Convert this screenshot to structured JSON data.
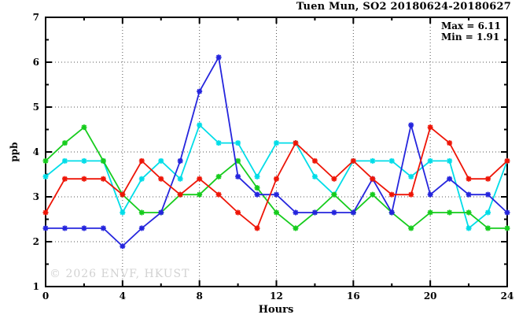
{
  "watermark": "© 2026 ENVF, HKUST",
  "chart_data": {
    "type": "line",
    "title": "Tuen Mun, SO2 20180624-20180627",
    "xlabel": "Hours",
    "ylabel": "ppb",
    "xlim": [
      0,
      24
    ],
    "ylim": [
      1,
      7
    ],
    "grid": "dotted",
    "legend_position": "none",
    "marker_style": "asterisk",
    "x_major_ticks": [
      0,
      4,
      8,
      12,
      16,
      20,
      24
    ],
    "x_minor_ticks": [
      2,
      6,
      10,
      14,
      18,
      22
    ],
    "y_major_ticks": [
      1,
      2,
      3,
      4,
      5,
      6,
      7
    ],
    "y_minor_ticks": [
      1.5,
      2.5,
      3.5,
      4.5,
      5.5,
      6.5
    ],
    "x_gridlines": [
      4,
      8,
      12,
      16,
      20
    ],
    "y_gridlines": [
      2,
      3,
      4,
      5,
      6
    ],
    "stats": {
      "max_label": "Max = 6.11",
      "min_label": "Min = 1.91",
      "max": 6.11,
      "min": 1.91
    },
    "x": [
      0,
      1,
      2,
      3,
      4,
      5,
      6,
      7,
      8,
      9,
      10,
      11,
      12,
      13,
      14,
      15,
      16,
      17,
      18,
      19,
      20,
      21,
      22,
      23,
      24
    ],
    "series": [
      {
        "name": "series-1-cyan",
        "color": "#00dde8",
        "values": [
          3.45,
          3.8,
          3.8,
          3.8,
          2.65,
          3.4,
          3.8,
          3.4,
          4.6,
          4.2,
          4.2,
          3.45,
          4.2,
          4.2,
          3.45,
          3.05,
          3.8,
          3.8,
          3.8,
          3.45,
          3.8,
          3.8,
          2.3,
          2.65,
          3.8
        ]
      },
      {
        "name": "series-2-green",
        "color": "#16cc1d",
        "values": [
          3.8,
          4.2,
          4.55,
          3.8,
          3.05,
          2.65,
          2.65,
          3.05,
          3.05,
          3.45,
          3.8,
          3.2,
          2.65,
          2.3,
          2.65,
          3.05,
          2.65,
          3.05,
          2.65,
          2.3,
          2.65,
          2.65,
          2.65,
          2.3,
          2.3
        ]
      },
      {
        "name": "series-3-blue",
        "color": "#2525dd",
        "values": [
          2.3,
          2.3,
          2.3,
          2.3,
          1.9,
          2.3,
          2.65,
          3.8,
          5.35,
          6.11,
          3.45,
          3.05,
          3.05,
          2.65,
          2.65,
          2.65,
          2.65,
          3.4,
          2.65,
          4.6,
          3.05,
          3.4,
          3.05,
          3.05,
          2.65
        ]
      },
      {
        "name": "series-4-red",
        "color": "#ee1507",
        "values": [
          2.65,
          3.4,
          3.4,
          3.4,
          3.05,
          3.8,
          3.4,
          3.05,
          3.4,
          3.05,
          2.65,
          2.3,
          3.4,
          4.2,
          3.8,
          3.4,
          3.8,
          3.4,
          3.05,
          3.05,
          4.55,
          4.2,
          3.4,
          3.4,
          3.8
        ]
      }
    ]
  }
}
